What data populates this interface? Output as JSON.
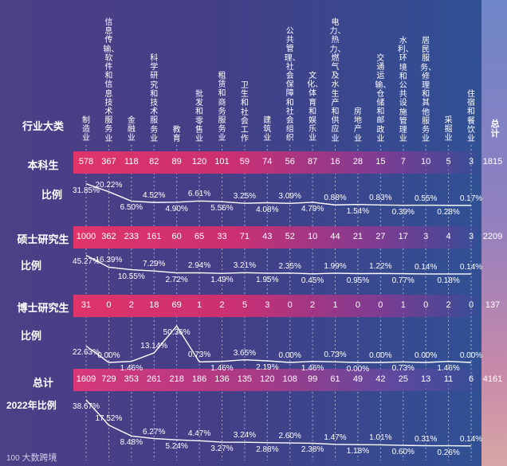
{
  "header_label": "行业大类",
  "categories": [
    "制造业",
    "信息传输、软件和信息技术服务业",
    "金融业",
    "科学研究和技术服务业",
    "教育",
    "批发和零售业",
    "租赁和商务服务业",
    "卫生和社会工作",
    "建筑业",
    "公共管理、社会保障和社会组织",
    "文化、体育和娱乐业",
    "电力、热力、燃气及水生产和供应业",
    "房地产业",
    "交通运输、仓储和邮政业",
    "水利、环境和公共设施管理业",
    "居民服务、修理和其他服务业",
    "采掘业",
    "住宿和餐饮业"
  ],
  "total_label": "总计",
  "rows": {
    "undergrad": {
      "label": "本科生",
      "ratio_label": "比例",
      "values": [
        578,
        367,
        118,
        82,
        89,
        120,
        101,
        59,
        74,
        56,
        87,
        16,
        28,
        15,
        7,
        10,
        5,
        3
      ],
      "total": "1815",
      "pct_text": [
        "31.85%",
        "20.22%",
        "6.50%",
        "4.52%",
        "4.90%",
        "6.61%",
        "5.56%",
        "3.25%",
        "4.08%",
        "3.09%",
        "4.79%",
        "0.88%",
        "1.54%",
        "0.83%",
        "0.39%",
        "0.55%",
        "0.28%",
        "0.17%"
      ]
    },
    "master": {
      "label": "硕士研究生",
      "ratio_label": "比例",
      "values": [
        1000,
        362,
        233,
        161,
        60,
        65,
        33,
        71,
        43,
        52,
        10,
        44,
        21,
        27,
        17,
        3,
        4,
        3
      ],
      "total": "2209",
      "pct_text": [
        "45.27%",
        "16.39%",
        "10.55%",
        "7.29%",
        "2.72%",
        "2.94%",
        "1.49%",
        "3.21%",
        "1.95%",
        "2.35%",
        "0.45%",
        "1.99%",
        "0.95%",
        "1.22%",
        "0.77%",
        "0.14%",
        "0.18%",
        "0.14%"
      ]
    },
    "doctor": {
      "label": "博士研究生",
      "ratio_label": "比例",
      "values": [
        31,
        0,
        2,
        18,
        69,
        1,
        2,
        5,
        3,
        0,
        2,
        1,
        0,
        0,
        1,
        0,
        2,
        0
      ],
      "total": "137",
      "pct_text": [
        "22.63%",
        "0.00%",
        "1.46%",
        "13.14%",
        "50.36%",
        "0.73%",
        "1.46%",
        "3.65%",
        "2.19%",
        "0.00%",
        "1.46%",
        "0.73%",
        "0.00%",
        "0.00%",
        "0.73%",
        "0.00%",
        "1.46%",
        "0.00%"
      ]
    },
    "all": {
      "label": "总计",
      "ratio_label": "2022年比例",
      "values": [
        1609,
        729,
        353,
        261,
        218,
        186,
        136,
        135,
        120,
        108,
        99,
        61,
        49,
        42,
        25,
        13,
        11,
        6
      ],
      "total": "4161",
      "pct_text": [
        "38.67%",
        "17.52%",
        "8.48%",
        "6.27%",
        "5.24%",
        "4.47%",
        "3.27%",
        "3.24%",
        "2.88%",
        "2.60%",
        "2.38%",
        "1.47%",
        "1.18%",
        "1.01%",
        "0.60%",
        "0.31%",
        "0.26%",
        "0.14%"
      ]
    }
  },
  "chart_data": {
    "type": "table",
    "categories": [
      "制造业",
      "信息传输、软件和信息技术服务业",
      "金融业",
      "科学研究和技术服务业",
      "教育",
      "批发和零售业",
      "租赁和商务服务业",
      "卫生和社会工作",
      "建筑业",
      "公共管理、社会保障和社会组织",
      "文化、体育和娱乐业",
      "电力、热力、燃气及水生产和供应业",
      "房地产业",
      "交通运输、仓储和邮政业",
      "水利、环境和公共设施管理业",
      "居民服务、修理和其他服务业",
      "采掘业",
      "住宿和餐饮业"
    ],
    "series": [
      {
        "name": "本科生",
        "values": [
          578,
          367,
          118,
          82,
          89,
          120,
          101,
          59,
          74,
          56,
          87,
          16,
          28,
          15,
          7,
          10,
          5,
          3
        ],
        "total": 1815
      },
      {
        "name": "本科生 比例",
        "values": [
          31.85,
          20.22,
          6.5,
          4.52,
          4.9,
          6.61,
          5.56,
          3.25,
          4.08,
          3.09,
          4.79,
          0.88,
          1.54,
          0.83,
          0.39,
          0.55,
          0.28,
          0.17
        ]
      },
      {
        "name": "硕士研究生",
        "values": [
          1000,
          362,
          233,
          161,
          60,
          65,
          33,
          71,
          43,
          52,
          10,
          44,
          21,
          27,
          17,
          3,
          4,
          3
        ],
        "total": 2209
      },
      {
        "name": "硕士研究生 比例",
        "values": [
          45.27,
          16.39,
          10.55,
          7.29,
          2.72,
          2.94,
          1.49,
          3.21,
          1.95,
          2.35,
          0.45,
          1.99,
          0.95,
          1.22,
          0.77,
          0.14,
          0.18,
          0.14
        ]
      },
      {
        "name": "博士研究生",
        "values": [
          31,
          0,
          2,
          18,
          69,
          1,
          2,
          5,
          3,
          0,
          2,
          1,
          0,
          0,
          1,
          0,
          2,
          0
        ],
        "total": 137
      },
      {
        "name": "博士研究生 比例",
        "values": [
          22.63,
          0.0,
          1.46,
          13.14,
          50.36,
          0.73,
          1.46,
          3.65,
          2.19,
          0.0,
          1.46,
          0.73,
          0.0,
          0.0,
          0.73,
          0.0,
          1.46,
          0.0
        ]
      },
      {
        "name": "总计",
        "values": [
          1609,
          729,
          353,
          261,
          218,
          186,
          136,
          135,
          120,
          108,
          99,
          61,
          49,
          42,
          25,
          13,
          11,
          6
        ],
        "total": 4161
      },
      {
        "name": "2022年比例",
        "values": [
          38.67,
          17.52,
          8.48,
          6.27,
          5.24,
          4.47,
          3.27,
          3.24,
          2.88,
          2.6,
          2.38,
          1.47,
          1.18,
          1.01,
          0.6,
          0.31,
          0.26,
          0.14
        ]
      }
    ]
  },
  "colors": {
    "undergrad_label": "#ffffff",
    "master_label": "#f0a030",
    "doctor_label": "#e87a78",
    "all_label": "#ffffff",
    "band": "#d8346f"
  },
  "watermark": "大数跨境"
}
